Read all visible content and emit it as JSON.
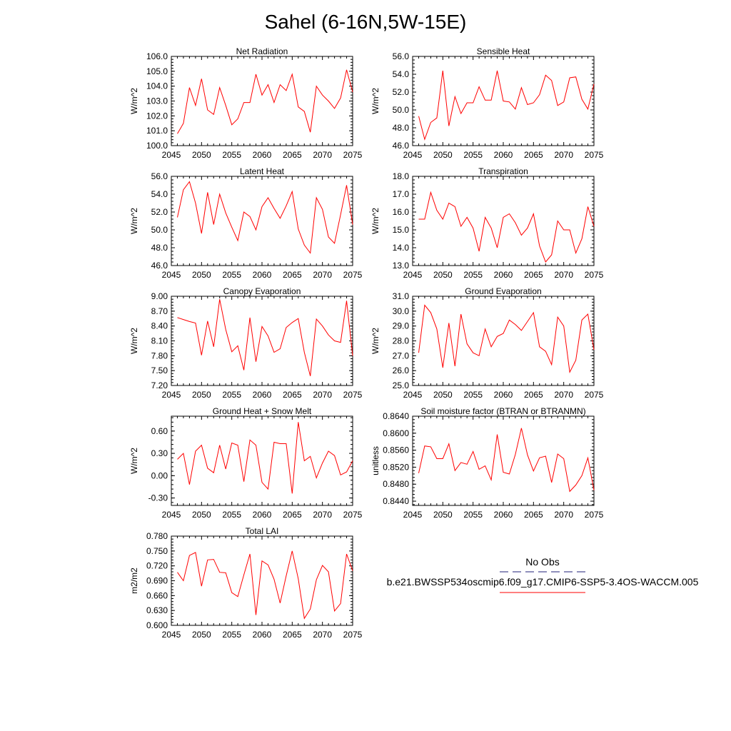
{
  "figure": {
    "title": "Sahel (6-16N,5W-15E)",
    "legend": {
      "obs_label": "No Obs",
      "obs_color": "#1f1f7a",
      "model_label": "b.e21.BWSSP534oscmip6.f09_g17.CMIP6-SSP5-3.4OS-WACCM.005",
      "model_color": "#ff0000"
    }
  },
  "chart_data": [
    {
      "type": "line",
      "title": "Net Radiation",
      "ylabel": "W/m^2",
      "xlim": [
        2045,
        2075
      ],
      "ylim": [
        100.0,
        106.0
      ],
      "xticks": [
        "2045",
        "2050",
        "2055",
        "2060",
        "2065",
        "2070",
        "2075"
      ],
      "yticks": [
        "100.0",
        "101.0",
        "102.0",
        "103.0",
        "104.0",
        "105.0",
        "106.0"
      ],
      "x": [
        2046,
        2047,
        2048,
        2049,
        2050,
        2051,
        2052,
        2053,
        2054,
        2055,
        2056,
        2057,
        2058,
        2059,
        2060,
        2061,
        2062,
        2063,
        2064,
        2065,
        2066,
        2067,
        2068,
        2069,
        2070,
        2071,
        2072,
        2073,
        2074,
        2075
      ],
      "values": [
        100.8,
        101.5,
        103.9,
        102.7,
        104.5,
        102.4,
        102.1,
        103.9,
        102.7,
        101.4,
        101.8,
        102.9,
        102.9,
        104.8,
        103.4,
        104.1,
        102.9,
        104.1,
        103.7,
        104.8,
        102.6,
        102.3,
        100.9,
        104.0,
        103.4,
        103.0,
        102.5,
        103.2,
        105.1,
        103.6
      ]
    },
    {
      "type": "line",
      "title": "Sensible Heat",
      "ylabel": "W/m^2",
      "xlim": [
        2045,
        2075
      ],
      "ylim": [
        46.0,
        56.0
      ],
      "xticks": [
        "2045",
        "2050",
        "2055",
        "2060",
        "2065",
        "2070",
        "2075"
      ],
      "yticks": [
        "46.0",
        "48.0",
        "50.0",
        "52.0",
        "54.0",
        "56.0"
      ],
      "x": [
        2046,
        2047,
        2048,
        2049,
        2050,
        2051,
        2052,
        2053,
        2054,
        2055,
        2056,
        2057,
        2058,
        2059,
        2060,
        2061,
        2062,
        2063,
        2064,
        2065,
        2066,
        2067,
        2068,
        2069,
        2070,
        2071,
        2072,
        2073,
        2074,
        2075
      ],
      "values": [
        49.3,
        46.7,
        48.6,
        49.1,
        54.4,
        48.2,
        51.5,
        49.6,
        50.8,
        50.8,
        52.6,
        51.1,
        51.1,
        54.4,
        51.0,
        50.9,
        50.1,
        52.5,
        50.6,
        50.8,
        51.7,
        53.9,
        53.3,
        50.5,
        50.9,
        53.6,
        53.7,
        51.2,
        50.1,
        52.9
      ]
    },
    {
      "type": "line",
      "title": "Latent Heat",
      "ylabel": "W/m^2",
      "xlim": [
        2045,
        2075
      ],
      "ylim": [
        46.0,
        56.0
      ],
      "xticks": [
        "2045",
        "2050",
        "2055",
        "2060",
        "2065",
        "2070",
        "2075"
      ],
      "yticks": [
        "46.0",
        "48.0",
        "50.0",
        "52.0",
        "54.0",
        "56.0"
      ],
      "x": [
        2046,
        2047,
        2048,
        2049,
        2050,
        2051,
        2052,
        2053,
        2054,
        2055,
        2056,
        2057,
        2058,
        2059,
        2060,
        2061,
        2062,
        2063,
        2064,
        2065,
        2066,
        2067,
        2068,
        2069,
        2070,
        2071,
        2072,
        2073,
        2074,
        2075
      ],
      "values": [
        51.4,
        54.5,
        55.4,
        53.0,
        49.6,
        54.2,
        50.6,
        54.0,
        51.9,
        50.3,
        48.8,
        52.0,
        51.5,
        50.0,
        52.6,
        53.6,
        52.4,
        51.3,
        52.7,
        54.3,
        50.1,
        48.3,
        47.4,
        53.6,
        52.3,
        49.2,
        48.5,
        51.7,
        55.0,
        50.6
      ]
    },
    {
      "type": "line",
      "title": "Transpiration",
      "ylabel": "W/m^2",
      "xlim": [
        2045,
        2075
      ],
      "ylim": [
        13.0,
        18.0
      ],
      "xticks": [
        "2045",
        "2050",
        "2055",
        "2060",
        "2065",
        "2070",
        "2075"
      ],
      "yticks": [
        "13.0",
        "14.0",
        "15.0",
        "16.0",
        "17.0",
        "18.0"
      ],
      "x": [
        2046,
        2047,
        2048,
        2049,
        2050,
        2051,
        2052,
        2053,
        2054,
        2055,
        2056,
        2057,
        2058,
        2059,
        2060,
        2061,
        2062,
        2063,
        2064,
        2065,
        2066,
        2067,
        2068,
        2069,
        2070,
        2071,
        2072,
        2073,
        2074,
        2075
      ],
      "values": [
        15.6,
        15.6,
        17.1,
        16.1,
        15.6,
        16.5,
        16.3,
        15.2,
        15.7,
        15.1,
        13.8,
        15.7,
        15.1,
        14.0,
        15.7,
        15.9,
        15.4,
        14.7,
        15.1,
        15.9,
        14.1,
        13.2,
        13.6,
        15.5,
        15.0,
        15.0,
        13.7,
        14.5,
        16.3,
        15.2
      ]
    },
    {
      "type": "line",
      "title": "Canopy Evaporation",
      "ylabel": "W/m^2",
      "xlim": [
        2045,
        2075
      ],
      "ylim": [
        7.2,
        9.0
      ],
      "xticks": [
        "2045",
        "2050",
        "2055",
        "2060",
        "2065",
        "2070",
        "2075"
      ],
      "yticks": [
        "7.20",
        "7.50",
        "7.80",
        "8.10",
        "8.40",
        "8.70",
        "9.00"
      ],
      "x": [
        2046,
        2047,
        2048,
        2049,
        2050,
        2051,
        2052,
        2053,
        2054,
        2055,
        2056,
        2057,
        2058,
        2059,
        2060,
        2061,
        2062,
        2063,
        2064,
        2065,
        2066,
        2067,
        2068,
        2069,
        2070,
        2071,
        2072,
        2073,
        2074,
        2075
      ],
      "values": [
        8.57,
        8.53,
        8.49,
        8.46,
        7.81,
        8.5,
        7.98,
        8.94,
        8.33,
        7.88,
        8.0,
        7.51,
        8.57,
        7.68,
        8.39,
        8.2,
        7.87,
        7.94,
        8.37,
        8.47,
        8.55,
        7.87,
        7.39,
        8.54,
        8.4,
        8.22,
        8.1,
        8.07,
        8.91,
        7.8
      ]
    },
    {
      "type": "line",
      "title": "Ground Evaporation",
      "ylabel": "W/m^2",
      "xlim": [
        2045,
        2075
      ],
      "ylim": [
        25.0,
        31.0
      ],
      "xticks": [
        "2045",
        "2050",
        "2055",
        "2060",
        "2065",
        "2070",
        "2075"
      ],
      "yticks": [
        "25.0",
        "26.0",
        "27.0",
        "28.0",
        "29.0",
        "30.0",
        "31.0"
      ],
      "x": [
        2046,
        2047,
        2048,
        2049,
        2050,
        2051,
        2052,
        2053,
        2054,
        2055,
        2056,
        2057,
        2058,
        2059,
        2060,
        2061,
        2062,
        2063,
        2064,
        2065,
        2066,
        2067,
        2068,
        2069,
        2070,
        2071,
        2072,
        2073,
        2074,
        2075
      ],
      "values": [
        27.2,
        30.4,
        29.9,
        28.8,
        26.2,
        29.2,
        26.3,
        29.8,
        27.8,
        27.2,
        27.0,
        28.8,
        27.6,
        28.3,
        28.5,
        29.4,
        29.1,
        28.7,
        29.3,
        29.9,
        27.6,
        27.3,
        26.4,
        29.6,
        29.0,
        25.9,
        26.7,
        29.4,
        29.8,
        27.4
      ]
    },
    {
      "type": "line",
      "title": "Ground Heat + Snow Melt",
      "ylabel": "W/m^2",
      "xlim": [
        2045,
        2075
      ],
      "ylim": [
        -0.4,
        0.8
      ],
      "xticks": [
        "2045",
        "2050",
        "2055",
        "2060",
        "2065",
        "2070",
        "2075"
      ],
      "yticks": [
        "-0.30",
        "0.00",
        "0.30",
        "0.60"
      ],
      "ytick_values": [
        -0.3,
        0.0,
        0.3,
        0.6
      ],
      "x": [
        2046,
        2047,
        2048,
        2049,
        2050,
        2051,
        2052,
        2053,
        2054,
        2055,
        2056,
        2057,
        2058,
        2059,
        2060,
        2061,
        2062,
        2063,
        2064,
        2065,
        2066,
        2067,
        2068,
        2069,
        2070,
        2071,
        2072,
        2073,
        2074,
        2075
      ],
      "values": [
        0.22,
        0.3,
        -0.12,
        0.33,
        0.41,
        0.1,
        0.04,
        0.41,
        0.09,
        0.44,
        0.41,
        -0.08,
        0.48,
        0.41,
        -0.09,
        -0.18,
        0.45,
        0.43,
        0.43,
        -0.24,
        0.72,
        0.2,
        0.26,
        -0.03,
        0.17,
        0.33,
        0.27,
        0.01,
        0.05,
        0.2
      ]
    },
    {
      "type": "line",
      "title": "Soil moisture factor (BTRAN or BTRANMN)",
      "ylabel": "unitless",
      "xlim": [
        2045,
        2075
      ],
      "ylim": [
        0.843,
        0.864
      ],
      "xticks": [
        "2045",
        "2050",
        "2055",
        "2060",
        "2065",
        "2070",
        "2075"
      ],
      "yticks": [
        "0.8440",
        "0.8480",
        "0.8520",
        "0.8560",
        "0.8600",
        "0.8640"
      ],
      "ytick_values": [
        0.844,
        0.848,
        0.852,
        0.856,
        0.86,
        0.864
      ],
      "x": [
        2046,
        2047,
        2048,
        2049,
        2050,
        2051,
        2052,
        2053,
        2054,
        2055,
        2056,
        2057,
        2058,
        2059,
        2060,
        2061,
        2062,
        2063,
        2064,
        2065,
        2066,
        2067,
        2068,
        2069,
        2070,
        2071,
        2072,
        2073,
        2074,
        2075
      ],
      "values": [
        0.8506,
        0.857,
        0.8568,
        0.854,
        0.854,
        0.8575,
        0.8512,
        0.8531,
        0.8527,
        0.8557,
        0.8515,
        0.8523,
        0.849,
        0.8597,
        0.8508,
        0.8504,
        0.855,
        0.8612,
        0.8549,
        0.8511,
        0.8542,
        0.8546,
        0.8484,
        0.8551,
        0.854,
        0.8463,
        0.8478,
        0.85,
        0.8542,
        0.8466
      ]
    },
    {
      "type": "line",
      "title": "Total LAI",
      "ylabel": "m2/m2",
      "xlim": [
        2045,
        2075
      ],
      "ylim": [
        0.6,
        0.78
      ],
      "xticks": [
        "2045",
        "2050",
        "2055",
        "2060",
        "2065",
        "2070",
        "2075"
      ],
      "yticks": [
        "0.600",
        "0.630",
        "0.660",
        "0.690",
        "0.720",
        "0.750",
        "0.780"
      ],
      "x": [
        2046,
        2047,
        2048,
        2049,
        2050,
        2051,
        2052,
        2053,
        2054,
        2055,
        2056,
        2057,
        2058,
        2059,
        2060,
        2061,
        2062,
        2063,
        2064,
        2065,
        2066,
        2067,
        2068,
        2069,
        2070,
        2071,
        2072,
        2073,
        2074,
        2075
      ],
      "values": [
        0.707,
        0.69,
        0.741,
        0.747,
        0.679,
        0.732,
        0.733,
        0.707,
        0.706,
        0.666,
        0.658,
        0.702,
        0.744,
        0.621,
        0.73,
        0.722,
        0.693,
        0.645,
        0.7,
        0.75,
        0.694,
        0.614,
        0.633,
        0.692,
        0.721,
        0.708,
        0.629,
        0.644,
        0.744,
        0.71
      ]
    }
  ]
}
